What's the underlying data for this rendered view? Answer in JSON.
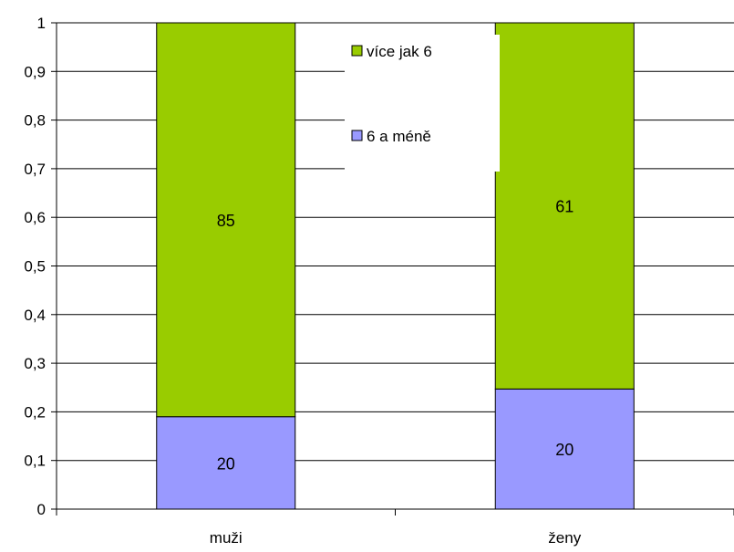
{
  "chart_data": {
    "type": "bar",
    "stacked": true,
    "normalized": true,
    "categories": [
      "muži",
      "ženy"
    ],
    "series": [
      {
        "name": "6 a méně",
        "values": [
          20,
          20
        ],
        "shares": [
          0.19,
          0.247
        ],
        "color": "#9999FF"
      },
      {
        "name": "více jak 6",
        "values": [
          85,
          61
        ],
        "shares": [
          0.81,
          0.753
        ],
        "color": "#99CC00"
      }
    ],
    "legend_order": [
      1,
      0
    ],
    "y_ticks": [
      "0",
      "0,1",
      "0,2",
      "0,3",
      "0,4",
      "0,5",
      "0,6",
      "0,7",
      "0,8",
      "0,9",
      "1"
    ],
    "ylim": [
      0,
      1
    ],
    "grid": true,
    "legend_position": "top-center",
    "title": "",
    "xlabel": "",
    "ylabel": ""
  }
}
